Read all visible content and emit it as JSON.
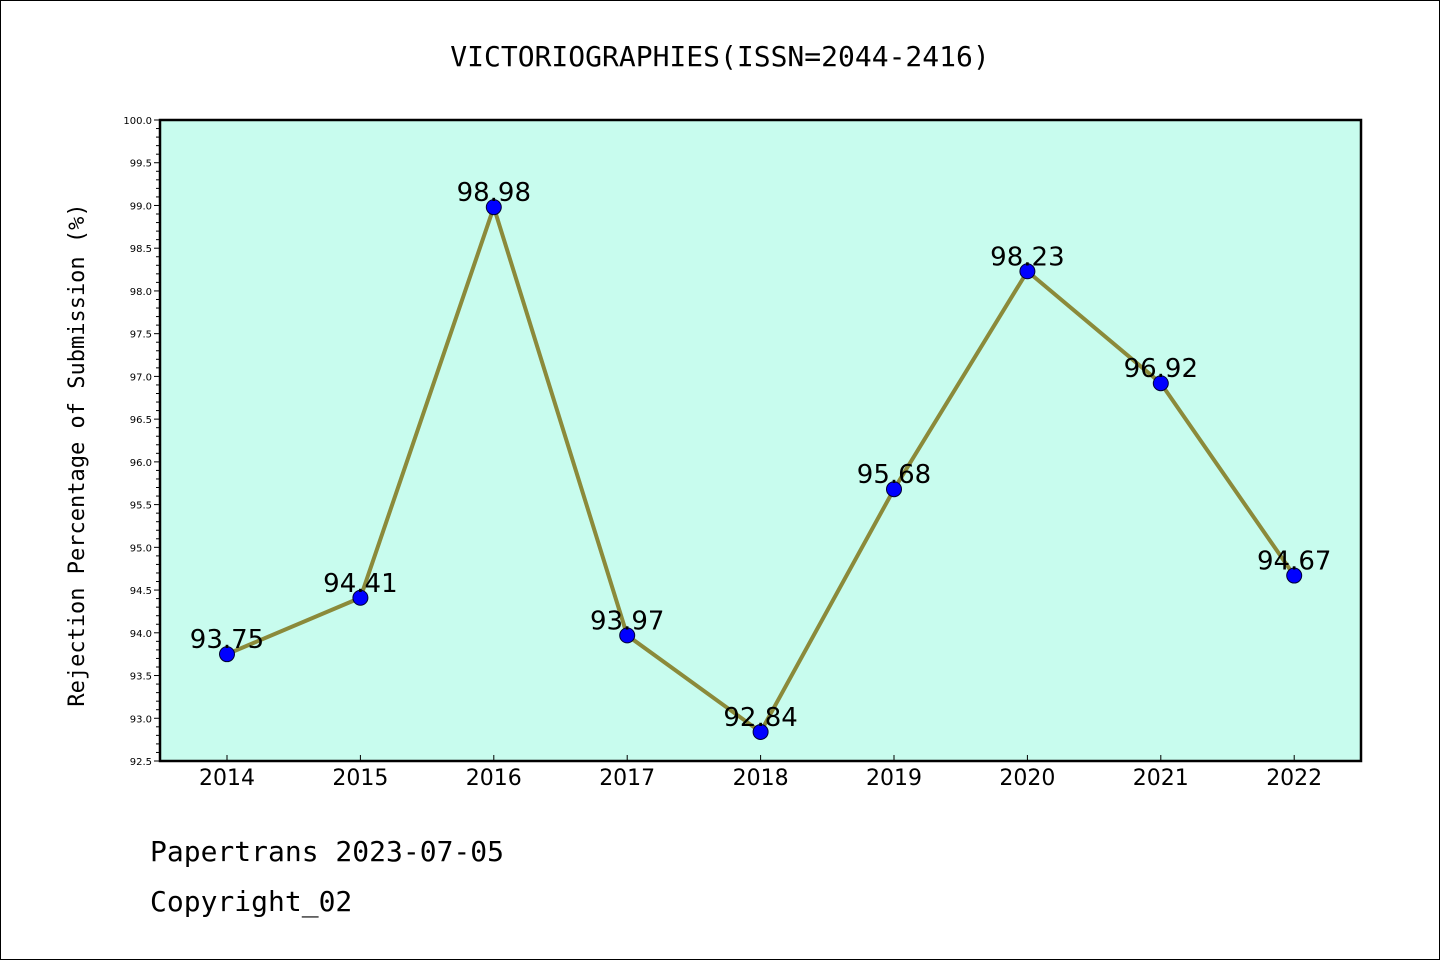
{
  "chart_data": {
    "type": "line",
    "title": "VICTORIOGRAPHIES(ISSN=2044-2416)",
    "xlabel": "",
    "ylabel": "Rejection Percentage of Submission (%)",
    "categories": [
      "2014",
      "2015",
      "2016",
      "2017",
      "2018",
      "2019",
      "2020",
      "2021",
      "2022"
    ],
    "series": [
      {
        "values": [
          93.75,
          94.41,
          98.98,
          93.97,
          92.84,
          95.68,
          98.23,
          96.92,
          94.67
        ],
        "data_labels": [
          "93.75",
          "94.41",
          "98.98",
          "93.97",
          "92.84",
          "95.68",
          "98.23",
          "96.92",
          "94.67"
        ]
      }
    ],
    "ylim": [
      92.5,
      100.0
    ],
    "yticks": [
      "92.5",
      "93.0",
      "93.5",
      "94.0",
      "94.5",
      "95.0",
      "95.5",
      "96.0",
      "96.5",
      "97.0",
      "97.5",
      "98.0",
      "98.5",
      "99.0",
      "99.5",
      "100.0"
    ],
    "grid": false,
    "colors": {
      "plot_background": "#c8fcee",
      "line": "#8b8a3a",
      "marker": "#0000ff"
    }
  },
  "footer": {
    "source": "Papertrans 2023-07-05",
    "copyright": "Copyright_02"
  }
}
